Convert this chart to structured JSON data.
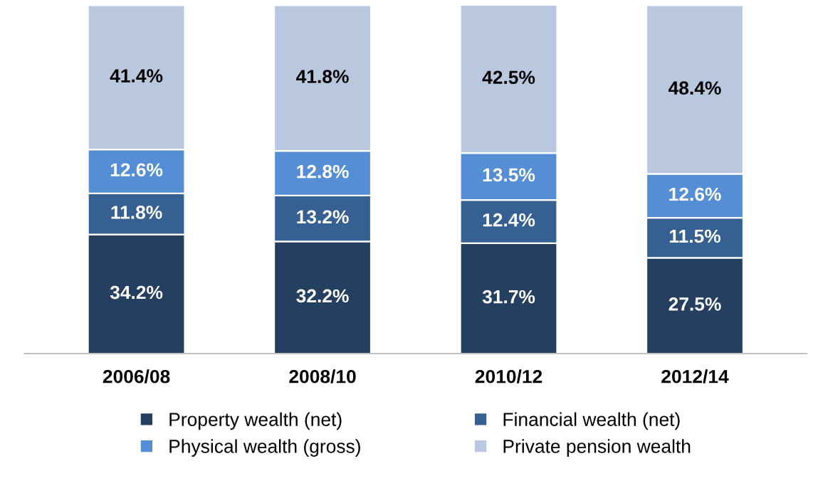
{
  "chart_data": {
    "type": "bar",
    "stacked": true,
    "legend": "bottom",
    "grid": false,
    "tick_labels": "x",
    "categories": [
      "2006/08",
      "2008/10",
      "2010/12",
      "2012/14"
    ],
    "series": [
      {
        "name": "Property wealth (net)",
        "color": "#243f60",
        "values": [
          34.2,
          32.2,
          31.7,
          27.5
        ],
        "value_labels": [
          "34.2%",
          "32.2%",
          "31.7%",
          "27.5%"
        ]
      },
      {
        "name": "Financial wealth (net)",
        "color": "#376092",
        "values": [
          11.8,
          13.2,
          12.4,
          11.5
        ],
        "value_labels": [
          "11.8%",
          "13.2%",
          "12.4%",
          "11.5%"
        ]
      },
      {
        "name": "Physical wealth (gross)",
        "color": "#558ed5",
        "values": [
          12.6,
          12.8,
          13.5,
          12.6
        ],
        "value_labels": [
          "12.6%",
          "12.8%",
          "13.5%",
          "12.6%"
        ]
      },
      {
        "name": "Private pension wealth",
        "color": "#b9c7df",
        "values": [
          41.4,
          41.8,
          42.5,
          48.4
        ],
        "value_labels": [
          "41.4%",
          "41.8%",
          "42.5%",
          "48.4%"
        ]
      }
    ]
  }
}
